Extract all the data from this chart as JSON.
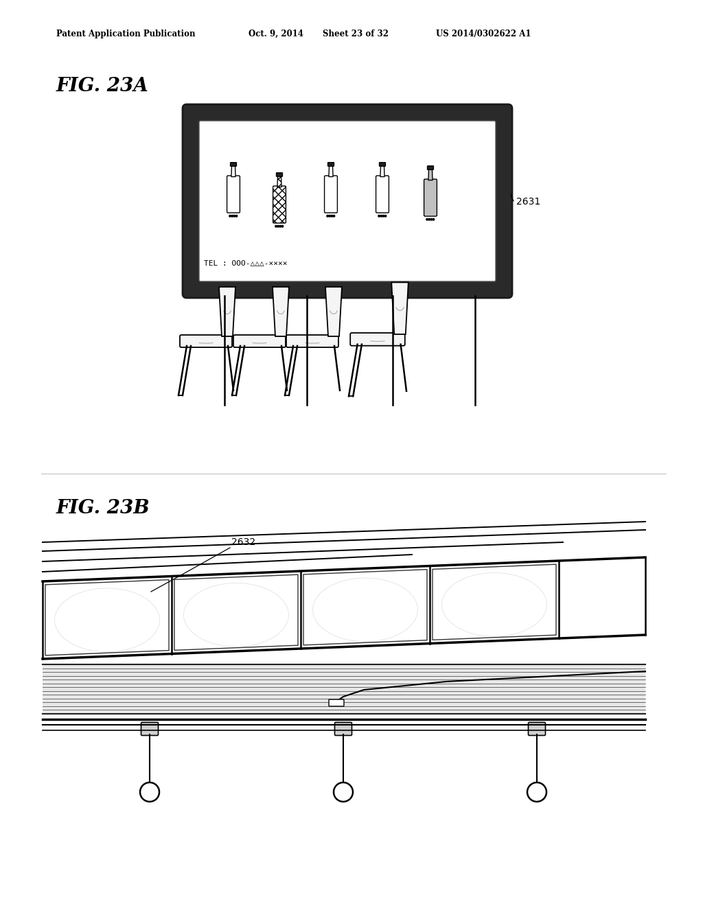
{
  "bg_color": "#ffffff",
  "header_text": "Patent Application Publication",
  "header_date": "Oct. 9, 2014",
  "header_sheet": "Sheet 23 of 32",
  "header_patent": "US 2014/0302622 A1",
  "fig_a_label": "FIG. 23A",
  "fig_b_label": "FIG. 23B",
  "label_2631": "2631",
  "label_2632": "2632",
  "tel_text": "TEL : OOO-△△△-××××"
}
